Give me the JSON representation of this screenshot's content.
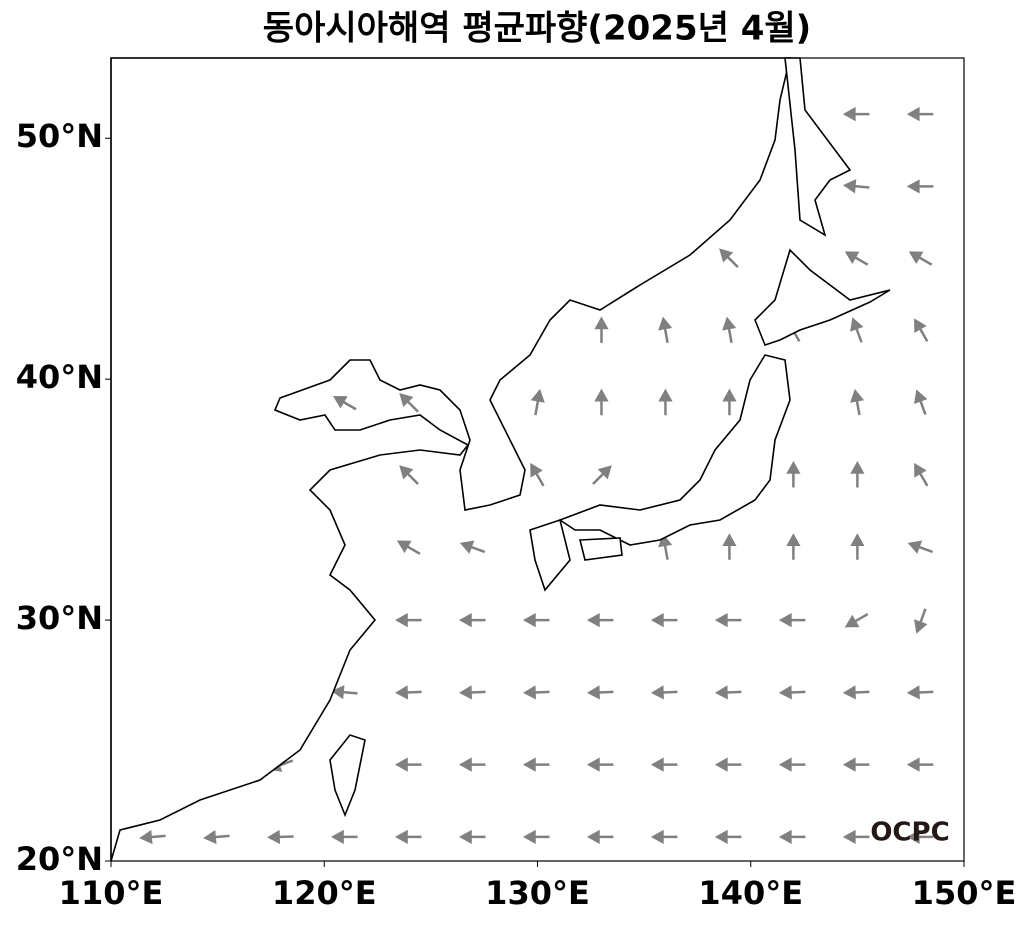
{
  "chart_data": {
    "type": "vector_map",
    "title": "동아시아해역 평균파향(2025년 4월)",
    "xlim": [
      110,
      150
    ],
    "ylim": [
      20,
      53.33
    ],
    "xticks": [
      {
        "value": 110,
        "label": "110°E"
      },
      {
        "value": 120,
        "label": "120°E"
      },
      {
        "value": 130,
        "label": "130°E"
      },
      {
        "value": 140,
        "label": "140°E"
      },
      {
        "value": 150,
        "label": "150°E"
      }
    ],
    "yticks": [
      {
        "value": 20,
        "label": "20°N"
      },
      {
        "value": 30,
        "label": "30°N"
      },
      {
        "value": 40,
        "label": "40°N"
      },
      {
        "value": 50,
        "label": "50°N"
      }
    ],
    "color": "#808080",
    "lons": [
      112,
      115,
      118,
      121,
      124,
      127,
      130,
      133,
      136,
      139,
      142,
      145,
      148
    ],
    "lats": [
      21,
      24,
      27,
      30,
      33,
      36,
      39,
      42,
      45,
      48,
      51
    ],
    "directions": [
      [
        265,
        265,
        268,
        270,
        270,
        270,
        270,
        270,
        270,
        270,
        270,
        270,
        270
      ],
      [
        null,
        null,
        250,
        null,
        270,
        270,
        270,
        270,
        270,
        270,
        270,
        270,
        270
      ],
      [
        null,
        null,
        null,
        275,
        268,
        268,
        268,
        268,
        268,
        268,
        268,
        268,
        268
      ],
      [
        null,
        null,
        null,
        null,
        270,
        270,
        270,
        270,
        270,
        270,
        270,
        240,
        200
      ],
      [
        null,
        null,
        null,
        null,
        300,
        290,
        null,
        null,
        350,
        0,
        0,
        0,
        290
      ],
      [
        null,
        null,
        null,
        null,
        315,
        null,
        330,
        45,
        null,
        null,
        0,
        0,
        330
      ],
      [
        null,
        null,
        null,
        300,
        315,
        null,
        10,
        0,
        0,
        0,
        null,
        350,
        340
      ],
      [
        null,
        null,
        null,
        null,
        null,
        null,
        null,
        0,
        350,
        350,
        330,
        340,
        330
      ],
      [
        null,
        null,
        null,
        null,
        null,
        null,
        null,
        null,
        null,
        315,
        null,
        300,
        300
      ],
      [
        null,
        null,
        null,
        null,
        null,
        null,
        null,
        null,
        null,
        null,
        null,
        275,
        270
      ],
      [
        null,
        null,
        null,
        null,
        null,
        null,
        null,
        null,
        null,
        null,
        null,
        270,
        270
      ]
    ],
    "watermark": "OCPC"
  }
}
